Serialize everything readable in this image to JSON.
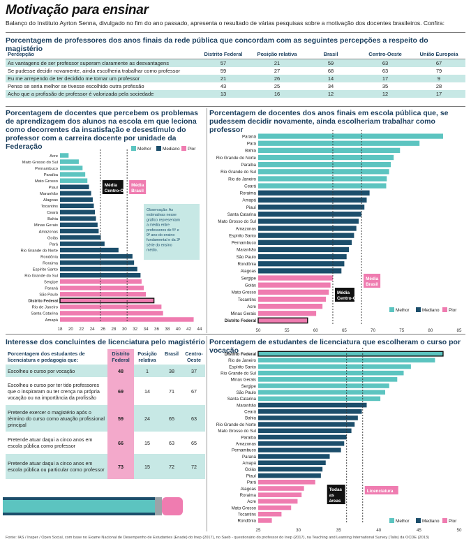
{
  "title": "Motivação para ensinar",
  "subtitle": "Balanço do Instituto Ayrton Senna, divulgado no fim do ano passado, apresenta o resultado de várias pesquisas sobre a motivação dos docentes brasileiros. Confira:",
  "footnote": "Fonte: IAS / Insper / Open Social, com base no Exame Nacional de Desempenho de Estudantes (Enade) do Inep (2017), no Saeb - questionário do professor do Inep (2017), na Teaching and Learning International Survey (Talis) da OCDE (2013)",
  "colors": {
    "melhor": "#5cc4c0",
    "mediano": "#1c4e6b",
    "pior": "#ef7cb0",
    "highlight_row": "#c7e8e5",
    "pink_cell": "#f3a9cb"
  },
  "legend": {
    "melhor": "Melhor",
    "mediano": "Mediano",
    "pior": "Pior"
  },
  "table1": {
    "title": "Porcentagem de professores dos anos finais da rede pública que concordam com as seguintes percepções a respeito do magistério",
    "headers": [
      "Percepção",
      "Distrito Federal",
      "Posição relativa",
      "Brasil",
      "Centro-Oeste",
      "União Europeia"
    ],
    "rows": [
      [
        "As vantagens de ser professor superam claramente as desvantagens",
        "57",
        "21",
        "59",
        "63",
        "67"
      ],
      [
        "Se pudesse decidir novamente, ainda escolheria trabalhar como professor",
        "59",
        "27",
        "68",
        "63",
        "79"
      ],
      [
        "Eu me arrependo de ter decidido me tornar um professor",
        "21",
        "26",
        "14",
        "17",
        "9"
      ],
      [
        "Penso se seria melhor se tivesse escolhido outra profissão",
        "43",
        "25",
        "34",
        "35",
        "28"
      ],
      [
        "Acho que a profissão de professor é valorizada pela sociedade",
        "13",
        "16",
        "12",
        "12",
        "17"
      ]
    ]
  },
  "table2": {
    "title": "Interesse dos concluintes de licenciatura pelo magistério",
    "headers": [
      "Porcentagem dos estudantes de licenciatura e pedagogia que:",
      "Distrito Federal",
      "Posição relativa",
      "Brasil",
      "Centro-Oeste"
    ],
    "rows": [
      [
        "Escolheu o curso por vocação",
        "48",
        "1",
        "38",
        "37"
      ],
      [
        "Escolheu o curso por ter tido professores que o inspiraram ou ter crença na própria vocação ou na importância da profissão",
        "69",
        "14",
        "71",
        "67"
      ],
      [
        "Pretende exercer o magistério após o término do curso como atuação profissional principal",
        "59",
        "24",
        "65",
        "63"
      ],
      [
        "Pretende atuar daqui a cinco anos em escola pública como professor",
        "66",
        "15",
        "63",
        "65"
      ],
      [
        "Pretende atuar daqui a cinco anos em escola pública ou particular como professor",
        "73",
        "15",
        "72",
        "72"
      ]
    ]
  },
  "chart_data": [
    {
      "type": "bar",
      "title": "Porcentagem de docentes que percebem os problemas de aprendizagem dos alunos na escola em que leciona como decorrentes da insatisfação e desestímulo do professor com a carreira docente por unidade da Federação",
      "xlim": [
        18,
        44
      ],
      "ticks": [
        18,
        20,
        22,
        24,
        26,
        28,
        30,
        32,
        34,
        36,
        38,
        40,
        42,
        44
      ],
      "reference_lines": [
        {
          "label": "Média Centro-Oeste",
          "value": 25.5
        },
        {
          "label": "Média Brasil",
          "value": 30.5
        }
      ],
      "note": "Observação: As estimativas nesse gráfico representam a média entre professores de 5º e 9º ano do ensino fundamental e da 3ª série do ensino médio.",
      "highlight": "Distrito Federal",
      "categories": [
        "Acre",
        "Mato Grosso do Sul",
        "Pernambuco",
        "Paraíba",
        "Mato Grosso",
        "Piauí",
        "Maranhão",
        "Alagoas",
        "Tocantins",
        "Ceará",
        "Bahia",
        "Minas Gerais",
        "Amazonas",
        "Goiás",
        "Pará",
        "Rio Grande do Norte",
        "Rondônia",
        "Roraima",
        "Espírito Santo",
        "Rio Grande do Sul",
        "Sergipe",
        "Paraná",
        "São Paulo",
        "Distrito Federal",
        "Rio de Janeiro",
        "Santa Catarina",
        "Amapá"
      ],
      "values": [
        19.6,
        21.5,
        22.2,
        22.7,
        23.1,
        23.4,
        23.8,
        24.1,
        24.3,
        24.5,
        24.7,
        25.0,
        25.2,
        25.6,
        26.3,
        28.9,
        31.5,
        31.8,
        32.4,
        33.0,
        33.2,
        33.6,
        34.0,
        35.5,
        36.9,
        37.2,
        42.9
      ],
      "groups": [
        "Melhor",
        "Melhor",
        "Melhor",
        "Melhor",
        "Melhor",
        "Mediano",
        "Mediano",
        "Mediano",
        "Mediano",
        "Mediano",
        "Mediano",
        "Mediano",
        "Mediano",
        "Mediano",
        "Mediano",
        "Mediano",
        "Mediano",
        "Mediano",
        "Mediano",
        "Mediano",
        "Pior",
        "Pior",
        "Pior",
        "Pior",
        "Pior",
        "Pior",
        "Pior"
      ]
    },
    {
      "type": "bar",
      "title": "Porcentagem de docentes dos anos finais em escola pública que, se pudessem decidir novamente, ainda escolheriam trabalhar como professor",
      "xlim": [
        50,
        85
      ],
      "ticks": [
        50,
        55,
        60,
        65,
        70,
        75,
        80,
        85
      ],
      "reference_lines": [
        {
          "label": "Média Centro-Oeste",
          "value": 63
        },
        {
          "label": "Média Brasil",
          "value": 68
        }
      ],
      "highlight": "Distrito Federal",
      "categories": [
        "Paraná",
        "Pará",
        "Bahia",
        "Rio Grande do Norte",
        "Paraíba",
        "Rio Grande do Sul",
        "Rio de Janeiro",
        "Ceará",
        "Roraima",
        "Amapá",
        "Piauí",
        "Santa Catarina",
        "Mato Grosso do Sul",
        "Amazonas",
        "Espírito Santo",
        "Pernambuco",
        "Maranhão",
        "São Paulo",
        "Rondônia",
        "Alagoas",
        "Sergipe",
        "Goiás",
        "Mato Grosso",
        "Tocantins",
        "Acre",
        "Minas Gerais",
        "Distrito Federal"
      ],
      "values": [
        82.2,
        78.1,
        74.7,
        73.6,
        73.1,
        72.8,
        72.4,
        72.3,
        69.4,
        68.9,
        68.5,
        68.0,
        67.5,
        67.1,
        66.7,
        66.3,
        65.8,
        65.4,
        65.0,
        64.5,
        63.0,
        62.6,
        62.3,
        61.8,
        61.2,
        60.1,
        58.6
      ],
      "groups": [
        "Melhor",
        "Melhor",
        "Melhor",
        "Melhor",
        "Melhor",
        "Melhor",
        "Melhor",
        "Melhor",
        "Mediano",
        "Mediano",
        "Mediano",
        "Mediano",
        "Mediano",
        "Mediano",
        "Mediano",
        "Mediano",
        "Mediano",
        "Mediano",
        "Mediano",
        "Mediano",
        "Pior",
        "Pior",
        "Pior",
        "Pior",
        "Pior",
        "Pior",
        "Pior"
      ]
    },
    {
      "type": "bar",
      "title": "Porcentagem de estudantes de licenciatura que escolheram o curso por vocação",
      "xlim": [
        25,
        50
      ],
      "ticks": [
        25,
        30,
        35,
        40,
        45,
        50
      ],
      "reference_lines": [
        {
          "label": "Todas as áreas",
          "value": 36
        },
        {
          "label": "Licenciatura",
          "value": 38
        }
      ],
      "highlight": "Distrito Federal",
      "categories": [
        "Distrito Federal",
        "Rio de Janeiro",
        "Espírito Santo",
        "Rio Grande do Sul",
        "Minas Gerais",
        "Sergipe",
        "São Paulo",
        "Santa Catarina",
        "Maranhão",
        "Ceará",
        "Bahia",
        "Rio Grande do Norte",
        "Mato Grosso do Sul",
        "Paraíba",
        "Amazonas",
        "Pernambuco",
        "Paraná",
        "Amapá",
        "Goiás",
        "Piauí",
        "Pará",
        "Alagoas",
        "Roraima",
        "Acre",
        "Mato Grosso",
        "Tocantins",
        "Rondônia"
      ],
      "values": [
        48.0,
        47.0,
        44.0,
        43.1,
        42.3,
        41.3,
        40.8,
        40.2,
        38.5,
        37.9,
        37.4,
        37.0,
        36.6,
        36.0,
        35.7,
        35.3,
        33.9,
        33.4,
        33.0,
        32.8,
        32.1,
        30.7,
        30.4,
        29.9,
        29.1,
        27.9,
        26.7
      ],
      "groups": [
        "Melhor",
        "Melhor",
        "Melhor",
        "Melhor",
        "Melhor",
        "Melhor",
        "Melhor",
        "Melhor",
        "Mediano",
        "Mediano",
        "Mediano",
        "Mediano",
        "Mediano",
        "Mediano",
        "Mediano",
        "Mediano",
        "Mediano",
        "Mediano",
        "Mediano",
        "Mediano",
        "Pior",
        "Pior",
        "Pior",
        "Pior",
        "Pior",
        "Pior",
        "Pior"
      ]
    }
  ]
}
